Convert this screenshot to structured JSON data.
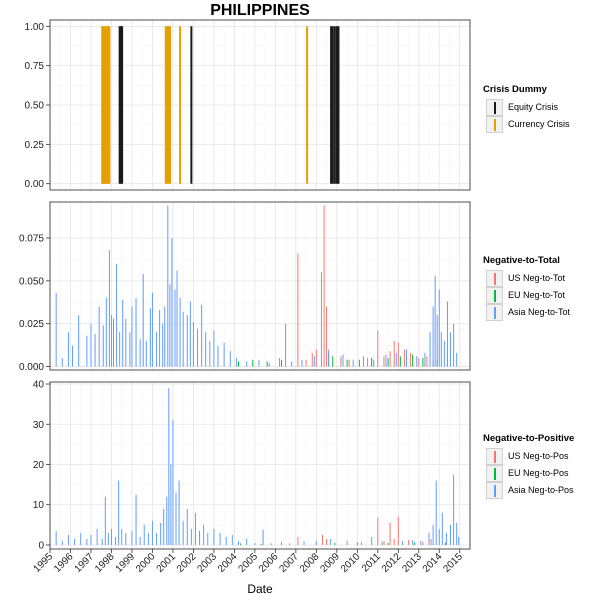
{
  "title": "PHILIPPINES",
  "xlabel": "Date",
  "colors": {
    "equity": "#1a1a1a",
    "currency": "#E69F00",
    "us": "#F8766D",
    "eu": "#00BA38",
    "asia": "#619CFF"
  },
  "legends": [
    {
      "title": "Crisis Dummy",
      "items": [
        {
          "label": "Equity Crisis",
          "color": "#1a1a1a"
        },
        {
          "label": "Currency Crisis",
          "color": "#E69F00"
        }
      ]
    },
    {
      "title": "Negative-to-Total",
      "items": [
        {
          "label": "US Neg-to-Tot",
          "color": "#F8766D"
        },
        {
          "label": "EU Neg-to-Tot",
          "color": "#00BA38"
        },
        {
          "label": "Asia Neg-to-Tot",
          "color": "#619CFF"
        }
      ]
    },
    {
      "title": "Negative-to-Positive",
      "items": [
        {
          "label": "US Neg-to-Pos",
          "color": "#F8766D"
        },
        {
          "label": "EU Neg-to-Pos",
          "color": "#00BA38"
        },
        {
          "label": "Asia Neg-to-Pos",
          "color": "#619CFF"
        }
      ]
    }
  ],
  "chart_data": {
    "type": "bar",
    "title": "PHILIPPINES",
    "xlabel": "Date",
    "x_range": [
      1995.0,
      2015.5
    ],
    "x_ticks": [
      "1995",
      "1996",
      "1997",
      "1998",
      "1999",
      "2000",
      "2001",
      "2002",
      "2003",
      "2004",
      "2005",
      "2006",
      "2007",
      "2008",
      "2009",
      "2010",
      "2011",
      "2012",
      "2013",
      "2014",
      "2015"
    ],
    "panels": [
      {
        "id": "crisis",
        "ylim": [
          -0.04,
          1.04
        ],
        "y_ticks": [
          0.0,
          0.25,
          0.5,
          0.75,
          1.0
        ],
        "y_tick_labels": [
          "0.00",
          "0.25",
          "0.50",
          "0.75",
          "1.00"
        ],
        "series": [
          {
            "name": "Currency Crisis",
            "color": "#E69F00",
            "dates": [
              1997.55,
              1997.62,
              1997.68,
              1997.74,
              1997.8,
              1997.85,
              1997.9,
              2000.65,
              2000.72,
              2000.8,
              2000.86,
              2001.35,
              2007.55
            ],
            "value": 1
          },
          {
            "name": "Equity Crisis",
            "color": "#1a1a1a",
            "dates": [
              1998.4,
              1998.46,
              1998.52,
              2001.9,
              2008.72,
              2008.8,
              2008.9,
              2009.0,
              2009.08
            ],
            "value": 1
          }
        ]
      },
      {
        "id": "neg_to_total",
        "ylim": [
          -0.002,
          0.096
        ],
        "y_ticks": [
          0.0,
          0.025,
          0.05,
          0.075
        ],
        "y_tick_labels": [
          "0.000",
          "0.025",
          "0.050",
          "0.075"
        ],
        "series": [
          {
            "name": "US Neg-to-Tot",
            "color": "#F8766D",
            "points": [
              [
                2007.1,
                0.066
              ],
              [
                2007.5,
                0.004
              ],
              [
                2007.8,
                0.008
              ],
              [
                2008.0,
                0.01
              ],
              [
                2008.25,
                0.055
              ],
              [
                2008.38,
                0.094
              ],
              [
                2008.5,
                0.035
              ],
              [
                2008.6,
                0.008
              ],
              [
                2009.2,
                0.006
              ],
              [
                2009.6,
                0.004
              ],
              [
                2010.5,
                0.005
              ],
              [
                2011.0,
                0.021
              ],
              [
                2011.3,
                0.006
              ],
              [
                2011.6,
                0.009
              ],
              [
                2011.8,
                0.015
              ],
              [
                2012.0,
                0.014
              ],
              [
                2012.3,
                0.01
              ],
              [
                2012.6,
                0.008
              ],
              [
                2013.0,
                0.005
              ],
              [
                2013.4,
                0.006
              ],
              [
                2013.7,
                0.004
              ]
            ]
          },
          {
            "name": "EU Neg-to-Tot",
            "color": "#00BA38",
            "points": [
              [
                2004.2,
                0.003
              ],
              [
                2004.9,
                0.004
              ],
              [
                2005.6,
                0.003
              ],
              [
                2006.3,
                0.004
              ],
              [
                2008.8,
                0.006
              ],
              [
                2009.5,
                0.004
              ],
              [
                2010.1,
                0.004
              ],
              [
                2010.7,
                0.005
              ],
              [
                2011.5,
                0.005
              ],
              [
                2012.1,
                0.006
              ],
              [
                2012.7,
                0.007
              ],
              [
                2013.2,
                0.005
              ],
              [
                2013.9,
                0.004
              ],
              [
                2014.4,
                0.006
              ]
            ]
          },
          {
            "name": "Asia Neg-to-Tot",
            "color": "#619CFF",
            "points": [
              [
                1995.3,
                0.043
              ],
              [
                1995.6,
                0.005
              ],
              [
                1995.9,
                0.02
              ],
              [
                1996.1,
                0.012
              ],
              [
                1996.4,
                0.03
              ],
              [
                1996.8,
                0.018
              ],
              [
                1997.0,
                0.025
              ],
              [
                1997.2,
                0.019
              ],
              [
                1997.4,
                0.035
              ],
              [
                1997.6,
                0.024
              ],
              [
                1997.75,
                0.04
              ],
              [
                1997.9,
                0.068
              ],
              [
                1998.0,
                0.03
              ],
              [
                1998.1,
                0.028
              ],
              [
                1998.25,
                0.06
              ],
              [
                1998.4,
                0.02
              ],
              [
                1998.55,
                0.039
              ],
              [
                1998.7,
                0.028
              ],
              [
                1998.9,
                0.02
              ],
              [
                1999.0,
                0.035
              ],
              [
                1999.2,
                0.04
              ],
              [
                1999.4,
                0.016
              ],
              [
                1999.55,
                0.054
              ],
              [
                1999.7,
                0.015
              ],
              [
                1999.9,
                0.034
              ],
              [
                2000.0,
                0.043
              ],
              [
                2000.2,
                0.02
              ],
              [
                2000.35,
                0.033
              ],
              [
                2000.5,
                0.025
              ],
              [
                2000.6,
                0.035
              ],
              [
                2000.75,
                0.094
              ],
              [
                2000.85,
                0.048
              ],
              [
                2000.95,
                0.075
              ],
              [
                2001.1,
                0.045
              ],
              [
                2001.2,
                0.056
              ],
              [
                2001.35,
                0.04
              ],
              [
                2001.5,
                0.032
              ],
              [
                2001.7,
                0.03
              ],
              [
                2001.85,
                0.038
              ],
              [
                2002.0,
                0.026
              ],
              [
                2002.2,
                0.022
              ],
              [
                2002.4,
                0.036
              ],
              [
                2002.6,
                0.02
              ],
              [
                2002.8,
                0.015
              ],
              [
                2003.0,
                0.021
              ],
              [
                2003.2,
                0.012
              ],
              [
                2003.5,
                0.014
              ],
              [
                2003.8,
                0.009
              ],
              [
                2004.1,
                0.005
              ],
              [
                2004.6,
                0.003
              ],
              [
                2005.2,
                0.004
              ],
              [
                2005.7,
                0.002
              ],
              [
                2006.2,
                0.005
              ],
              [
                2006.5,
                0.025
              ],
              [
                2006.8,
                0.003
              ],
              [
                2007.3,
                0.004
              ],
              [
                2007.9,
                0.006
              ],
              [
                2008.6,
                0.01
              ],
              [
                2009.3,
                0.007
              ],
              [
                2009.8,
                0.004
              ],
              [
                2010.3,
                0.006
              ],
              [
                2010.8,
                0.004
              ],
              [
                2011.4,
                0.007
              ],
              [
                2011.9,
                0.008
              ],
              [
                2012.4,
                0.01
              ],
              [
                2012.9,
                0.006
              ],
              [
                2013.3,
                0.008
              ],
              [
                2013.55,
                0.02
              ],
              [
                2013.7,
                0.035
              ],
              [
                2013.8,
                0.053
              ],
              [
                2013.9,
                0.03
              ],
              [
                2014.0,
                0.045
              ],
              [
                2014.1,
                0.02
              ],
              [
                2014.25,
                0.015
              ],
              [
                2014.4,
                0.038
              ],
              [
                2014.55,
                0.02
              ],
              [
                2014.7,
                0.025
              ],
              [
                2014.85,
                0.008
              ]
            ]
          }
        ]
      },
      {
        "id": "neg_to_pos",
        "ylim": [
          -1,
          40.5
        ],
        "y_ticks": [
          0,
          10,
          20,
          30,
          40
        ],
        "y_tick_labels": [
          "0",
          "10",
          "20",
          "30",
          "40"
        ],
        "series": [
          {
            "name": "US Neg-to-Pos",
            "color": "#F8766D",
            "points": [
              [
                2007.1,
                2.0
              ],
              [
                2008.3,
                2.5
              ],
              [
                2008.5,
                1.5
              ],
              [
                2011.0,
                6.8
              ],
              [
                2011.3,
                1.0
              ],
              [
                2011.6,
                5.5
              ],
              [
                2011.8,
                1.5
              ],
              [
                2012.0,
                7.0
              ],
              [
                2012.5,
                1.2
              ],
              [
                2013.2,
                0.8
              ],
              [
                2013.6,
                1.5
              ]
            ]
          },
          {
            "name": "EU Neg-to-Pos",
            "color": "#00BA38",
            "points": [
              [
                2004.3,
                0.4
              ],
              [
                2005.3,
                0.3
              ],
              [
                2008.9,
                0.5
              ],
              [
                2010.0,
                0.6
              ],
              [
                2011.5,
                0.5
              ],
              [
                2012.8,
                0.7
              ],
              [
                2014.3,
                0.6
              ]
            ]
          },
          {
            "name": "Asia Neg-to-Pos",
            "color": "#619CFF",
            "points": [
              [
                1995.3,
                3.5
              ],
              [
                1995.6,
                1.0
              ],
              [
                1995.9,
                2.5
              ],
              [
                1996.2,
                1.5
              ],
              [
                1996.5,
                3.0
              ],
              [
                1996.8,
                1.5
              ],
              [
                1997.0,
                2.5
              ],
              [
                1997.3,
                4.0
              ],
              [
                1997.55,
                1.5
              ],
              [
                1997.7,
                12.0
              ],
              [
                1997.85,
                3.0
              ],
              [
                1998.0,
                4.0
              ],
              [
                1998.2,
                2.0
              ],
              [
                1998.35,
                16.0
              ],
              [
                1998.5,
                4.0
              ],
              [
                1998.7,
                3.0
              ],
              [
                1999.0,
                3.5
              ],
              [
                1999.2,
                12.5
              ],
              [
                1999.4,
                2.0
              ],
              [
                1999.6,
                5.0
              ],
              [
                1999.8,
                3.0
              ],
              [
                2000.0,
                6.0
              ],
              [
                2000.2,
                3.0
              ],
              [
                2000.4,
                5.5
              ],
              [
                2000.55,
                9.0
              ],
              [
                2000.7,
                12.0
              ],
              [
                2000.8,
                39.0
              ],
              [
                2000.9,
                20.0
              ],
              [
                2001.0,
                31.0
              ],
              [
                2001.15,
                13.0
              ],
              [
                2001.3,
                16.0
              ],
              [
                2001.5,
                6.0
              ],
              [
                2001.7,
                9.0
              ],
              [
                2001.9,
                4.0
              ],
              [
                2002.1,
                8.0
              ],
              [
                2002.3,
                3.5
              ],
              [
                2002.5,
                5.0
              ],
              [
                2002.7,
                3.0
              ],
              [
                2003.0,
                4.0
              ],
              [
                2003.3,
                3.0
              ],
              [
                2003.6,
                2.0
              ],
              [
                2003.9,
                2.5
              ],
              [
                2004.2,
                1.0
              ],
              [
                2004.6,
                1.5
              ],
              [
                2005.0,
                0.5
              ],
              [
                2005.4,
                3.8
              ],
              [
                2005.8,
                0.4
              ],
              [
                2006.3,
                0.8
              ],
              [
                2006.7,
                0.4
              ],
              [
                2007.4,
                0.9
              ],
              [
                2008.0,
                1.0
              ],
              [
                2008.7,
                1.5
              ],
              [
                2009.5,
                1.0
              ],
              [
                2010.2,
                0.7
              ],
              [
                2010.7,
                2.0
              ],
              [
                2011.2,
                0.8
              ],
              [
                2012.2,
                1.0
              ],
              [
                2012.7,
                1.2
              ],
              [
                2013.1,
                1.0
              ],
              [
                2013.5,
                3.0
              ],
              [
                2013.7,
                5.0
              ],
              [
                2013.85,
                16.0
              ],
              [
                2014.0,
                4.0
              ],
              [
                2014.15,
                8.0
              ],
              [
                2014.35,
                3.0
              ],
              [
                2014.55,
                5.0
              ],
              [
                2014.7,
                17.5
              ],
              [
                2014.85,
                5.5
              ],
              [
                2014.95,
                2.0
              ]
            ]
          }
        ]
      }
    ]
  }
}
